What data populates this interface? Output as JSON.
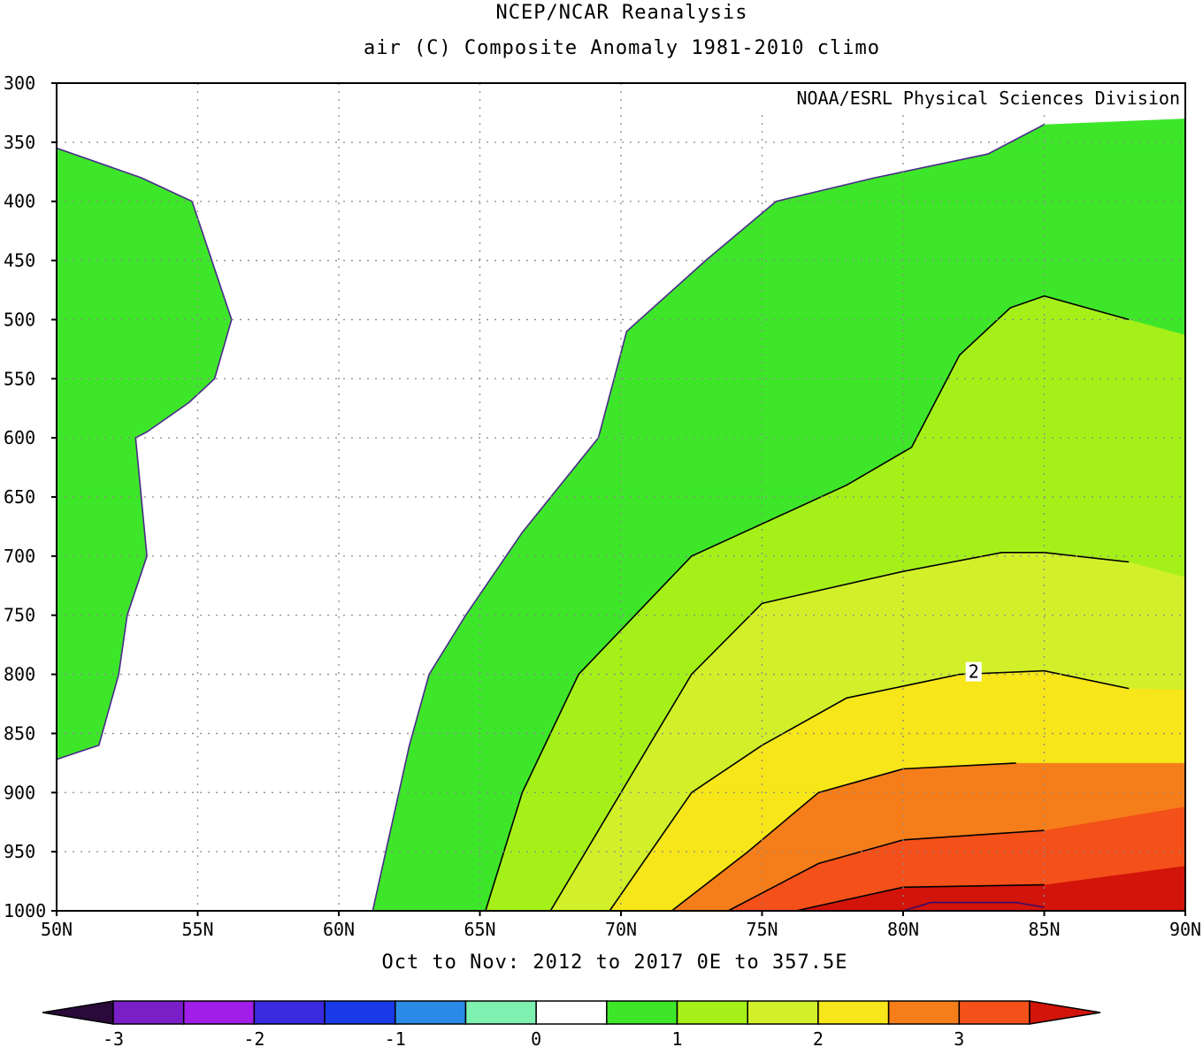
{
  "chart_data": {
    "type": "contour",
    "title": "NCEP/NCAR Reanalysis",
    "subtitle": "air (C) Composite Anomaly 1981-2010 climo",
    "credit": "NOAA/ESRL Physical Sciences Division",
    "xlabel": "Oct to Nov: 2012 to 2017 0E to 357.5E",
    "x_ticks": [
      "50N",
      "55N",
      "60N",
      "65N",
      "70N",
      "75N",
      "80N",
      "85N",
      "90N"
    ],
    "y_ticks": [
      "300",
      "350",
      "400",
      "450",
      "500",
      "550",
      "600",
      "650",
      "700",
      "750",
      "800",
      "850",
      "900",
      "950",
      "1000"
    ],
    "xlim": [
      50,
      90
    ],
    "ylim": [
      1000,
      300
    ],
    "grid": true,
    "contour_labels": [
      {
        "lat": 82.5,
        "level": 800,
        "text": "2"
      }
    ],
    "colorbar": {
      "labels": [
        "-3",
        "-2",
        "-1",
        "0",
        "1",
        "2",
        "3"
      ],
      "colors": [
        "#2a0a3a",
        "#7a1ec8",
        "#a01ee8",
        "#3a2ae0",
        "#1a3ae8",
        "#2a8ae8",
        "#7ef0b0",
        "#ffffff",
        "#3ee62a",
        "#a6f01a",
        "#d2f02a",
        "#f6e61a",
        "#f57e1a",
        "#f4501a",
        "#d2140a"
      ]
    },
    "levels": [
      {
        "name": "0.5-1.0",
        "color": "#3ee62a"
      },
      {
        "name": "1.0-1.5",
        "color": "#a6f01a"
      },
      {
        "name": "1.5-2.0",
        "color": "#d2f02a"
      },
      {
        "name": "2.0-2.5",
        "color": "#f6e61a"
      },
      {
        "name": "2.5-3.0",
        "color": "#f57e1a"
      },
      {
        "name": "3.0-3.5",
        "color": "#f4501a"
      },
      {
        "name": "3.5+",
        "color": "#d2140a"
      }
    ],
    "regions": {
      "west_green": [
        [
          50,
          355
        ],
        [
          53,
          380
        ],
        [
          54.8,
          400
        ],
        [
          56.2,
          500
        ],
        [
          55.6,
          550
        ],
        [
          54.7,
          570
        ],
        [
          53.2,
          595
        ],
        [
          52.8,
          600
        ],
        [
          53.2,
          700
        ],
        [
          52.5,
          750
        ],
        [
          52.2,
          800
        ],
        [
          51.5,
          860
        ],
        [
          50,
          872
        ]
      ],
      "green": [
        [
          61.2,
          1000
        ],
        [
          62.5,
          860
        ],
        [
          63.2,
          800
        ],
        [
          64.5,
          750
        ],
        [
          66.5,
          680
        ],
        [
          69.2,
          600
        ],
        [
          70.2,
          510
        ],
        [
          73,
          450
        ],
        [
          75.5,
          400
        ],
        [
          79,
          380
        ],
        [
          83,
          360
        ],
        [
          85,
          335
        ],
        [
          90,
          330
        ],
        [
          90,
          1000
        ]
      ],
      "lime": [
        [
          65.2,
          1000
        ],
        [
          66.5,
          900
        ],
        [
          68.5,
          800
        ],
        [
          72.5,
          700
        ],
        [
          78,
          640
        ],
        [
          80.3,
          608
        ],
        [
          82,
          530
        ],
        [
          83.8,
          490
        ],
        [
          85,
          480
        ],
        [
          88,
          500
        ],
        [
          90,
          513
        ],
        [
          90,
          1000
        ]
      ],
      "yellowgreen": [
        [
          67.5,
          1000
        ],
        [
          70,
          900
        ],
        [
          72.5,
          800
        ],
        [
          75,
          740
        ],
        [
          80,
          713
        ],
        [
          83.5,
          697
        ],
        [
          85,
          697
        ],
        [
          88,
          705
        ],
        [
          90,
          718
        ],
        [
          90,
          1000
        ]
      ],
      "yellow": [
        [
          69.6,
          1000
        ],
        [
          72.5,
          900
        ],
        [
          75,
          860
        ],
        [
          78,
          820
        ],
        [
          82,
          800
        ],
        [
          85,
          797
        ],
        [
          88,
          812
        ],
        [
          90,
          813
        ],
        [
          90,
          1000
        ]
      ],
      "orange": [
        [
          71.8,
          1000
        ],
        [
          74.5,
          950
        ],
        [
          77,
          900
        ],
        [
          80,
          880
        ],
        [
          84,
          875
        ],
        [
          90,
          875
        ],
        [
          90,
          1000
        ]
      ],
      "red_orange": [
        [
          73.8,
          1000
        ],
        [
          77,
          960
        ],
        [
          80,
          940
        ],
        [
          85,
          932
        ],
        [
          90,
          912
        ],
        [
          90,
          1000
        ]
      ],
      "red": [
        [
          76.2,
          1000
        ],
        [
          80,
          980
        ],
        [
          85,
          978
        ],
        [
          90,
          962
        ],
        [
          90,
          1000
        ]
      ]
    },
    "extra_contour": [
      [
        80,
        1000
      ],
      [
        81,
        993
      ],
      [
        84,
        993
      ],
      [
        85,
        997
      ]
    ]
  }
}
